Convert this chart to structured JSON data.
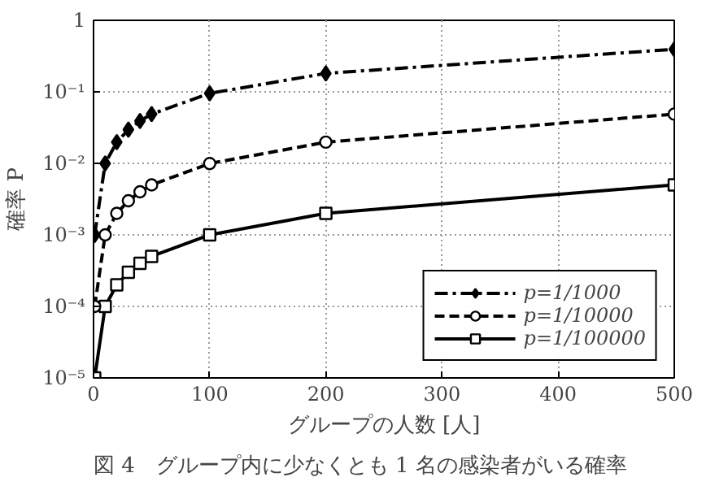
{
  "chart_data": {
    "type": "line",
    "title": "図 4　グループ内に少なくとも 1 名の感染者がいる確率",
    "xlabel": "グループの人数 [人]",
    "ylabel": "確率 P",
    "x": [
      1,
      10,
      20,
      30,
      40,
      50,
      100,
      200,
      500
    ],
    "series": [
      {
        "name": "p=1/1000",
        "color": "#000000",
        "marker": "diamond",
        "line_style": "dashdot",
        "values": [
          0.001,
          0.00995,
          0.0198,
          0.0296,
          0.0392,
          0.0488,
          0.0952,
          0.181,
          0.394
        ]
      },
      {
        "name": "p=1/10000",
        "color": "#000000",
        "marker": "circle",
        "line_style": "dashed",
        "values": [
          0.0001,
          0.001,
          0.002,
          0.003,
          0.004,
          0.005,
          0.00995,
          0.0198,
          0.0488
        ]
      },
      {
        "name": "p=1/100000",
        "color": "#000000",
        "marker": "square",
        "line_style": "solid",
        "values": [
          1e-05,
          0.0001,
          0.0002,
          0.0003,
          0.0004,
          0.0005,
          0.001,
          0.002,
          0.005
        ]
      }
    ],
    "log": "y",
    "xlim": [
      0,
      500
    ],
    "xticks": [
      0,
      100,
      200,
      300,
      400,
      500
    ],
    "ylim": [
      1e-05,
      1
    ],
    "yticks": [
      {
        "value": 1e-05,
        "label": "10⁻⁵"
      },
      {
        "value": 0.0001,
        "label": "10⁻⁴"
      },
      {
        "value": 0.001,
        "label": "10⁻³"
      },
      {
        "value": 0.01,
        "label": "10⁻²"
      },
      {
        "value": 0.1,
        "label": "10⁻¹"
      },
      1
    ],
    "grid": true,
    "legend": "bottom right"
  }
}
